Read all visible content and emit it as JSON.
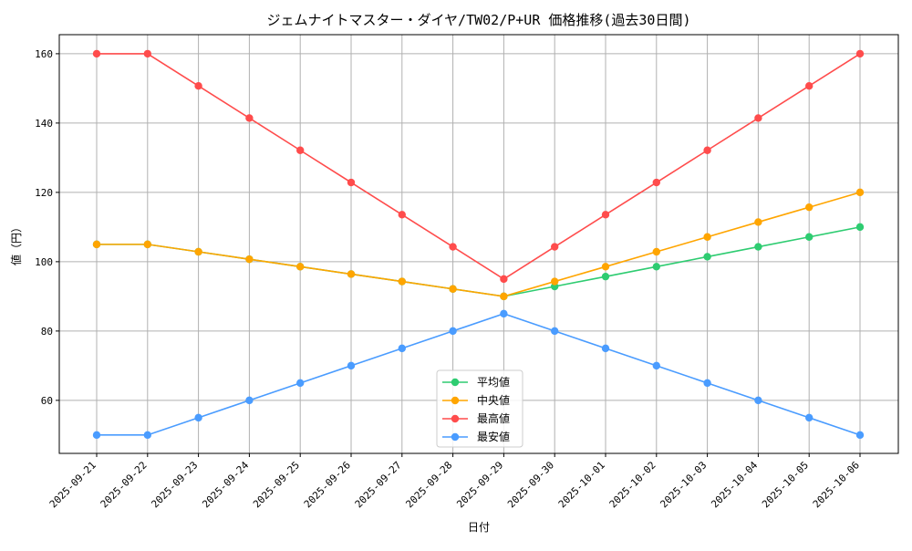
{
  "chart_data": {
    "type": "line",
    "title": "ジェムナイトマスター・ダイヤ/TW02/P+UR 価格推移(過去30日間)",
    "xlabel": "日付",
    "ylabel": "値（円）",
    "ylim": [
      44.7,
      165.5
    ],
    "yticks": [
      60,
      80,
      100,
      120,
      140,
      160
    ],
    "grid": true,
    "legend_position": "bottom-center",
    "x": [
      "2025-09-21",
      "2025-09-22",
      "2025-09-23",
      "2025-09-24",
      "2025-09-25",
      "2025-09-26",
      "2025-09-27",
      "2025-09-28",
      "2025-09-29",
      "2025-09-30",
      "2025-10-01",
      "2025-10-02",
      "2025-10-03",
      "2025-10-04",
      "2025-10-05",
      "2025-10-06"
    ],
    "series": [
      {
        "name": "平均値",
        "color": "#2ecc71",
        "values": [
          105,
          105,
          102.86,
          100.71,
          98.57,
          96.43,
          94.29,
          92.14,
          90,
          92.86,
          95.71,
          98.57,
          101.43,
          104.29,
          107.14,
          110
        ]
      },
      {
        "name": "中央値",
        "color": "#ffa500",
        "values": [
          105,
          105,
          102.86,
          100.71,
          98.57,
          96.43,
          94.29,
          92.14,
          90,
          94.29,
          98.57,
          102.86,
          107.14,
          111.43,
          115.71,
          120
        ]
      },
      {
        "name": "最高値",
        "color": "#ff4c4c",
        "values": [
          160,
          160,
          150.71,
          141.43,
          132.14,
          122.86,
          113.57,
          104.29,
          95,
          104.29,
          113.57,
          122.86,
          132.14,
          141.43,
          150.71,
          160
        ]
      },
      {
        "name": "最安値",
        "color": "#4a9cff",
        "values": [
          50,
          50,
          55,
          60,
          65,
          70,
          75,
          80,
          85,
          80,
          75,
          70,
          65,
          60,
          55,
          50
        ]
      }
    ]
  }
}
